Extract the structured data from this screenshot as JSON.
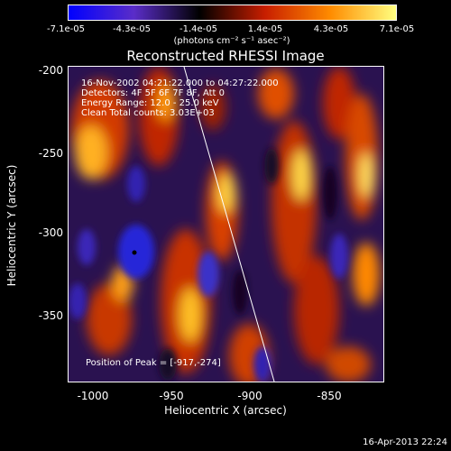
{
  "colorbar": {
    "ticks": [
      "-7.1e-05",
      "-4.3e-05",
      "-1.4e-05",
      "1.4e-05",
      "4.3e-05",
      "7.1e-05"
    ],
    "units_label": "(photons cm⁻² s⁻¹ asec⁻²)",
    "colors": [
      "#0000ff",
      "#5a2dc8",
      "#000000",
      "#c81e00",
      "#ff8c00",
      "#ffff80"
    ]
  },
  "plot": {
    "title": "Reconstructed RHESSI Image",
    "info_lines": [
      "16-Nov-2002 04:21:22.000 to 04:27:22.000",
      "Detectors: 4F 5F 6F 7F 8F, Att 0",
      "Energy Range: 12.0 - 25.0 keV",
      "Clean    Total counts: 3.03E+03"
    ],
    "peak_label": "Position of Peak = [-917,-274]"
  },
  "axes": {
    "xlabel": "Heliocentric X (arcsec)",
    "ylabel": "Heliocentric Y (arcsec)",
    "xticks": [
      "-1000",
      "-950",
      "-900",
      "-850"
    ],
    "yticks": [
      "-200",
      "-250",
      "-300",
      "-350"
    ]
  },
  "footer": {
    "date": "16-Apr-2013 22:24"
  }
}
